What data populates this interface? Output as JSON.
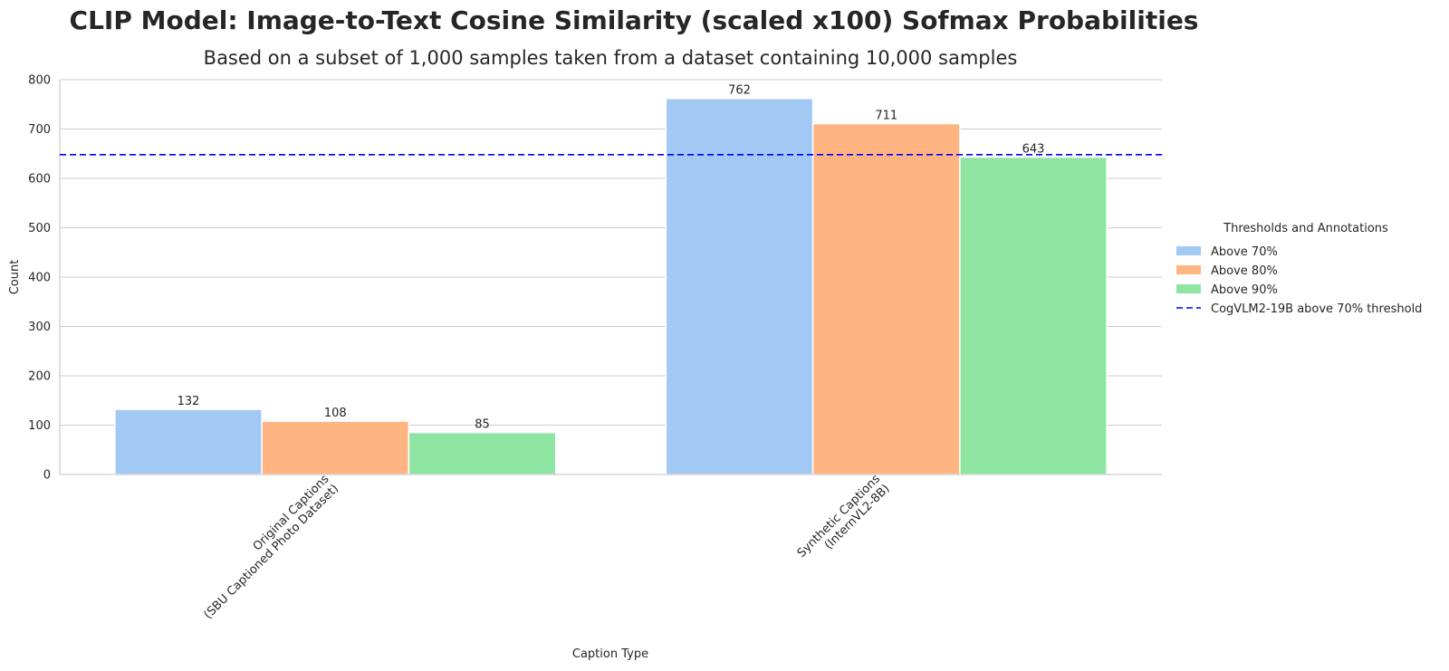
{
  "chart_data": {
    "type": "bar",
    "title": "CLIP Model: Image-to-Text Cosine Similarity (scaled x100) Sofmax Probabilities",
    "subtitle": "Based on a subset of 1,000 samples taken from a dataset containing 10,000 samples",
    "xlabel": "Caption Type",
    "ylabel": "Count",
    "categories": [
      [
        "Original Captions",
        "(SBU Captioned Photo Dataset)"
      ],
      [
        "Synthetic Captions",
        "(InternVL2-8B)"
      ]
    ],
    "series": [
      {
        "name": "Above 70%",
        "color": "#a1c9f4",
        "values": [
          132,
          762
        ]
      },
      {
        "name": "Above 80%",
        "color": "#ffb482",
        "values": [
          108,
          711
        ]
      },
      {
        "name": "Above 90%",
        "color": "#8de5a1",
        "values": [
          85,
          643
        ]
      }
    ],
    "reference_line": {
      "name": "CogVLM2-19B above 70% threshold",
      "value": 648,
      "color": "#0000ff",
      "style": "dashed"
    },
    "ylim": [
      0,
      800
    ],
    "yticks": [
      0,
      100,
      200,
      300,
      400,
      500,
      600,
      700,
      800
    ],
    "grid": true,
    "legend": {
      "title": "Thresholds and Annotations",
      "placement": "right"
    }
  }
}
